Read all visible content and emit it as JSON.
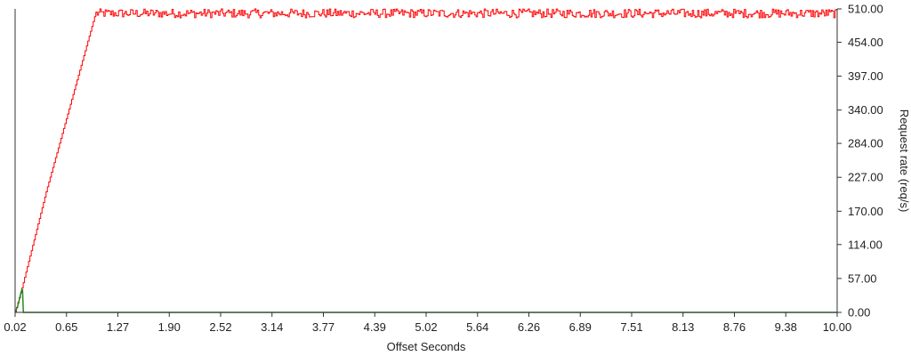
{
  "chart_data": {
    "type": "line",
    "title": "",
    "xlabel": "Offset Seconds",
    "ylabel": "Request rate (req/s)",
    "xlim": [
      0.02,
      10.0
    ],
    "ylim": [
      0,
      510
    ],
    "x_ticks": [
      "0.02",
      "0.65",
      "1.27",
      "1.90",
      "2.52",
      "3.14",
      "3.77",
      "4.39",
      "5.02",
      "5.64",
      "6.26",
      "6.89",
      "7.51",
      "8.13",
      "8.76",
      "9.38",
      "10.00"
    ],
    "y_ticks": [
      "0.00",
      "57.00",
      "114.00",
      "170.00",
      "227.00",
      "284.00",
      "340.00",
      "397.00",
      "454.00",
      "510.00"
    ],
    "grid": false,
    "legend": "none",
    "series": [
      {
        "color": "#ff0000",
        "description": "ramp from 0 at 0.02s to ~500 at ~1.0s, then noisy plateau between ~495 and 510",
        "x": [
          0.02,
          0.1,
          0.2,
          0.3,
          0.4,
          0.5,
          0.6,
          0.7,
          0.8,
          0.9,
          1.0,
          10.0
        ],
        "values": [
          0,
          40,
          95,
          150,
          205,
          255,
          305,
          355,
          405,
          455,
          505,
          505
        ],
        "plateau_range": [
          495,
          510
        ]
      },
      {
        "color": "#228b22",
        "description": "small spike near start, then ~0",
        "x": [
          0.02,
          0.05,
          0.1,
          0.11,
          0.12,
          0.13,
          10.0
        ],
        "values": [
          0,
          10,
          38,
          38,
          0,
          0,
          0
        ]
      }
    ]
  }
}
